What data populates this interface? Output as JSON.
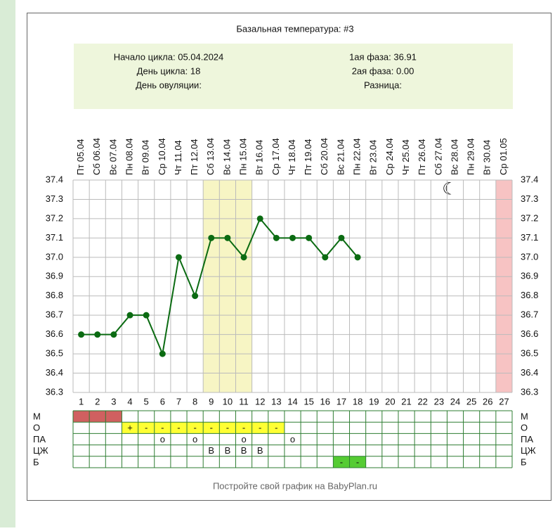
{
  "chart_data": {
    "type": "line",
    "title": "Базальная температура: #3",
    "info_left": [
      "Начало цикла: 05.04.2024",
      "День цикла: 18",
      "День овуляции:"
    ],
    "info_right": [
      "1ая фаза: 36.91",
      "2ая фаза: 0.00",
      "Разница:"
    ],
    "dates": [
      "Пт 05.04",
      "Сб 06.04",
      "Вс 07.04",
      "Пн 08.04",
      "Вт 09.04",
      "Ср 10.04",
      "Чт 11.04",
      "Пт 12.04",
      "Сб 13.04",
      "Вс 14.04",
      "Пн 15.04",
      "Вт 16.04",
      "Ср 17.04",
      "Чт 18.04",
      "Пт 19.04",
      "Сб 20.04",
      "Вс 21.04",
      "Пн 22.04",
      "Вт 23.04",
      "Ср 24.04",
      "Чт 25.04",
      "Пт 26.04",
      "Сб 27.04",
      "Вс 28.04",
      "Пн 29.04",
      "Вт 30.04",
      "Ср 01.05"
    ],
    "categories": [
      1,
      2,
      3,
      4,
      5,
      6,
      7,
      8,
      9,
      10,
      11,
      12,
      13,
      14,
      15,
      16,
      17,
      18,
      19,
      20,
      21,
      22,
      23,
      24,
      25,
      26,
      27
    ],
    "series": [
      {
        "color": "#0b6b12",
        "values": [
          36.6,
          36.6,
          36.6,
          36.7,
          36.7,
          36.5,
          37.0,
          36.8,
          37.1,
          37.1,
          37.0,
          37.2,
          37.1,
          37.1,
          37.1,
          37.0,
          37.1,
          37.0,
          null,
          null,
          null,
          null,
          null,
          null,
          null,
          null,
          null
        ]
      }
    ],
    "ylim": [
      36.3,
      37.4
    ],
    "yticks": [
      37.4,
      37.3,
      37.2,
      37.1,
      {
        "value": 37,
        "label": "37.0"
      },
      36.9,
      36.8,
      36.7,
      36.6,
      36.5,
      36.4,
      36.3
    ],
    "grid": true,
    "highlight_days": [
      9,
      10,
      11
    ],
    "highlight_color": "#f7f5c4",
    "pink_days": [
      27
    ],
    "pink_color": "#f7c3c3",
    "table": {
      "rows": [
        {
          "label": "М",
          "filled": [
            1,
            2,
            3
          ],
          "color": "#d06060"
        },
        {
          "label": "О",
          "filled": [
            4,
            5,
            6,
            7,
            8,
            9,
            10,
            11,
            12,
            13
          ],
          "color": "#ffff33",
          "cells": [
            {
              "day": 4,
              "text": "+"
            },
            {
              "day": 5,
              "text": "-"
            },
            {
              "day": 6,
              "text": "-"
            },
            {
              "day": 7,
              "text": "-"
            },
            {
              "day": 8,
              "text": "-"
            },
            {
              "day": 9,
              "text": "-"
            },
            {
              "day": 10,
              "text": "-"
            },
            {
              "day": 11,
              "text": "-"
            },
            {
              "day": 12,
              "text": "-"
            },
            {
              "day": 13,
              "text": "-"
            }
          ]
        },
        {
          "label": "ПА",
          "cells": [
            {
              "day": 6,
              "text": "о"
            },
            {
              "day": 8,
              "text": "о"
            },
            {
              "day": 11,
              "text": "о"
            },
            {
              "day": 14,
              "text": "о"
            }
          ]
        },
        {
          "label": "ЦЖ",
          "cells": [
            {
              "day": 9,
              "text": "В"
            },
            {
              "day": 10,
              "text": "В"
            },
            {
              "day": 11,
              "text": "В"
            },
            {
              "day": 12,
              "text": "В"
            }
          ]
        },
        {
          "label": "Б",
          "filled": [
            17,
            18
          ],
          "color": "#55cc33",
          "cells": [
            {
              "day": 17,
              "text": "-"
            },
            {
              "day": 18,
              "text": "-"
            }
          ]
        }
      ]
    },
    "footer": "Постройте свой график на BabyPlan.ru"
  }
}
